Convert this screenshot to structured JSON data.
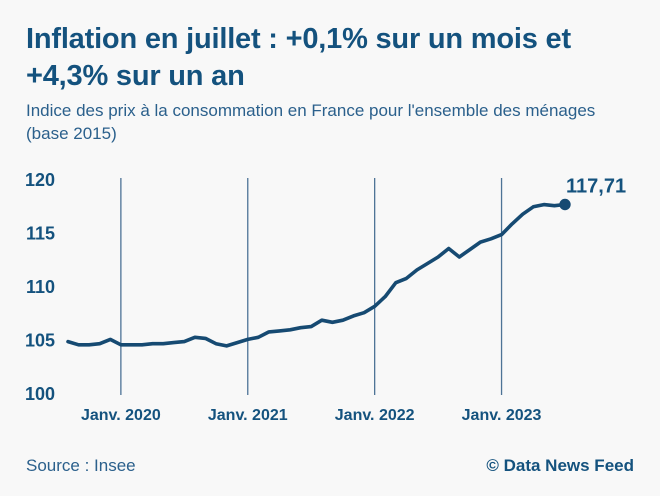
{
  "header": {
    "title_line1": "Inflation en juillet : +0,1% sur un mois et",
    "title_line2": "+4,3% sur un an",
    "subtitle_line1": "Indice des prix à la consommation en France pour l'ensemble des ménages",
    "subtitle_line2": "(base 2015)"
  },
  "footer": {
    "source": "Source : Insee",
    "credit": "© Data News Feed"
  },
  "colors": {
    "background": "#f8f8f8",
    "accent_dark_blue": "#14527e",
    "muted_blue": "#2b608c",
    "line": "#164a72",
    "grid": "#4d7396"
  },
  "chart_data": {
    "type": "line",
    "title": "Indice des prix à la consommation en France (base 2015)",
    "x": [
      "2019-08",
      "2019-09",
      "2019-10",
      "2019-11",
      "2019-12",
      "2020-01",
      "2020-02",
      "2020-03",
      "2020-04",
      "2020-05",
      "2020-06",
      "2020-07",
      "2020-08",
      "2020-09",
      "2020-10",
      "2020-11",
      "2020-12",
      "2021-01",
      "2021-02",
      "2021-03",
      "2021-04",
      "2021-05",
      "2021-06",
      "2021-07",
      "2021-08",
      "2021-09",
      "2021-10",
      "2021-11",
      "2021-12",
      "2022-01",
      "2022-02",
      "2022-03",
      "2022-04",
      "2022-05",
      "2022-06",
      "2022-07",
      "2022-08",
      "2022-09",
      "2022-10",
      "2022-11",
      "2022-12",
      "2023-01",
      "2023-02",
      "2023-03",
      "2023-04",
      "2023-05",
      "2023-06",
      "2023-07"
    ],
    "values": [
      104.9,
      104.6,
      104.6,
      104.7,
      105.1,
      104.6,
      104.6,
      104.6,
      104.7,
      104.7,
      104.8,
      104.9,
      105.3,
      105.2,
      104.7,
      104.5,
      104.8,
      105.1,
      105.3,
      105.8,
      105.9,
      106.0,
      106.2,
      106.3,
      106.9,
      106.7,
      106.9,
      107.3,
      107.6,
      108.2,
      109.1,
      110.4,
      110.8,
      111.6,
      112.2,
      112.8,
      113.6,
      112.8,
      113.5,
      114.2,
      114.5,
      114.9,
      115.9,
      116.8,
      117.5,
      117.7,
      117.6,
      117.71
    ],
    "end_label": "117,71",
    "last_value": 117.71,
    "y_ticks": [
      100,
      105,
      110,
      115,
      120
    ],
    "ylim": [
      100,
      120
    ],
    "x_tick_labels": [
      "Janv. 2020",
      "Janv. 2021",
      "Janv. 2022",
      "Janv. 2023"
    ],
    "x_tick_indices": [
      5,
      17,
      29,
      41
    ],
    "grid": "vertical-only",
    "legend": "none"
  }
}
